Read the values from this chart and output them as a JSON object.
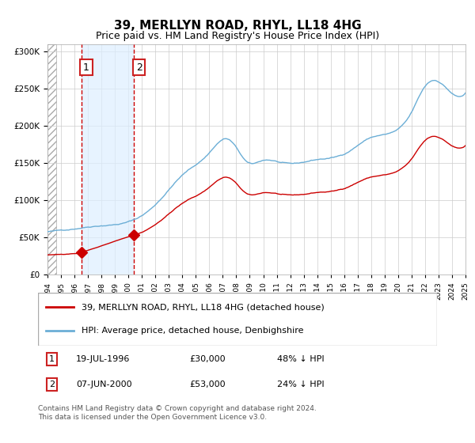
{
  "title": "39, MERLLYN ROAD, RHYL, LL18 4HG",
  "subtitle": "Price paid vs. HM Land Registry's House Price Index (HPI)",
  "legend_line1": "39, MERLLYN ROAD, RHYL, LL18 4HG (detached house)",
  "legend_line2": "HPI: Average price, detached house, Denbighshire",
  "sale1_date": "19-JUL-1996",
  "sale1_price": 30000,
  "sale1_label": "1",
  "sale2_date": "07-JUN-2000",
  "sale2_price": 53000,
  "sale2_label": "2",
  "sale1_pct": "48% ↓ HPI",
  "sale2_pct": "24% ↓ HPI",
  "footer": "Contains HM Land Registry data © Crown copyright and database right 2024.\nThis data is licensed under the Open Government Licence v3.0.",
  "hpi_color": "#6baed6",
  "property_color": "#cc0000",
  "sale_marker_color": "#cc0000",
  "bg_hatch_color": "#d0d0d0",
  "highlight_color": "#ddeeff",
  "dashed_line_color": "#cc0000",
  "grid_color": "#cccccc",
  "ylim": [
    0,
    310000
  ],
  "yticks": [
    0,
    50000,
    100000,
    150000,
    200000,
    250000,
    300000
  ],
  "ylabel_format": "£{0}K"
}
